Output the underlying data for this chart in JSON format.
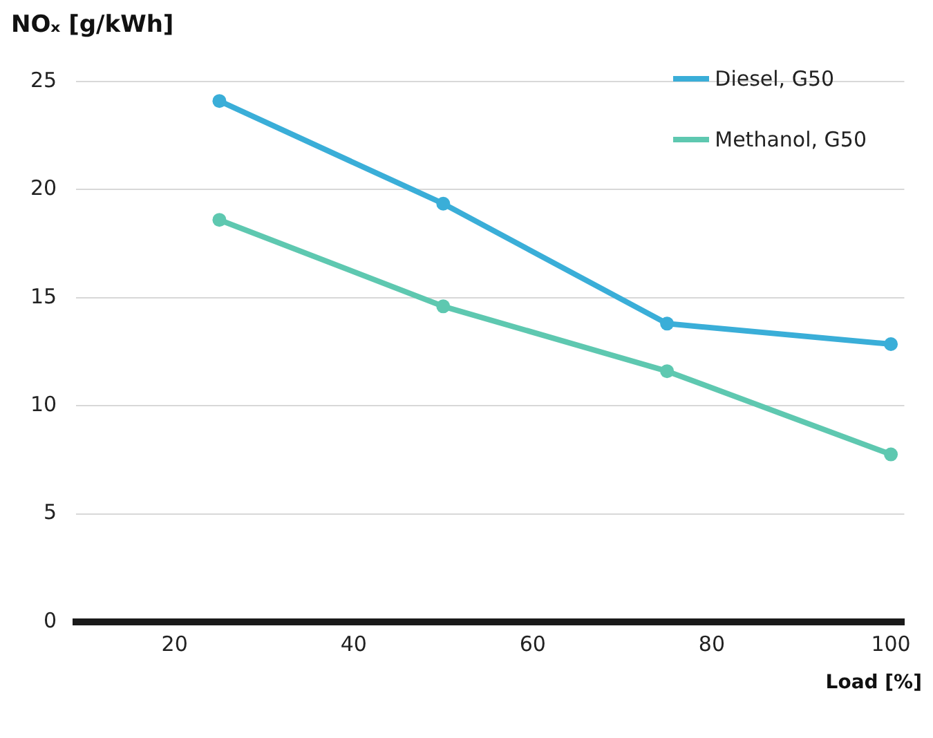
{
  "chart_data": {
    "type": "line",
    "ylabel": "NOₓ [g/kWh]",
    "xlabel": "Load [%]",
    "x": [
      25,
      50,
      75,
      100
    ],
    "series": [
      {
        "name": "Diesel, G50",
        "color": "#3aaed8",
        "values": [
          24.1,
          19.35,
          13.8,
          12.85
        ]
      },
      {
        "name": "Methanol, G50",
        "color": "#5ec8b0",
        "values": [
          18.6,
          14.6,
          11.6,
          7.75
        ]
      }
    ],
    "xlim": [
      9,
      101.5
    ],
    "xticks": [
      20,
      40,
      60,
      80,
      100
    ],
    "ylim": [
      0,
      25
    ],
    "yticks": [
      0,
      5,
      10,
      15,
      20,
      25
    ],
    "grid": "y",
    "legend": "top right",
    "marker": "circle",
    "line_style": "solid"
  }
}
